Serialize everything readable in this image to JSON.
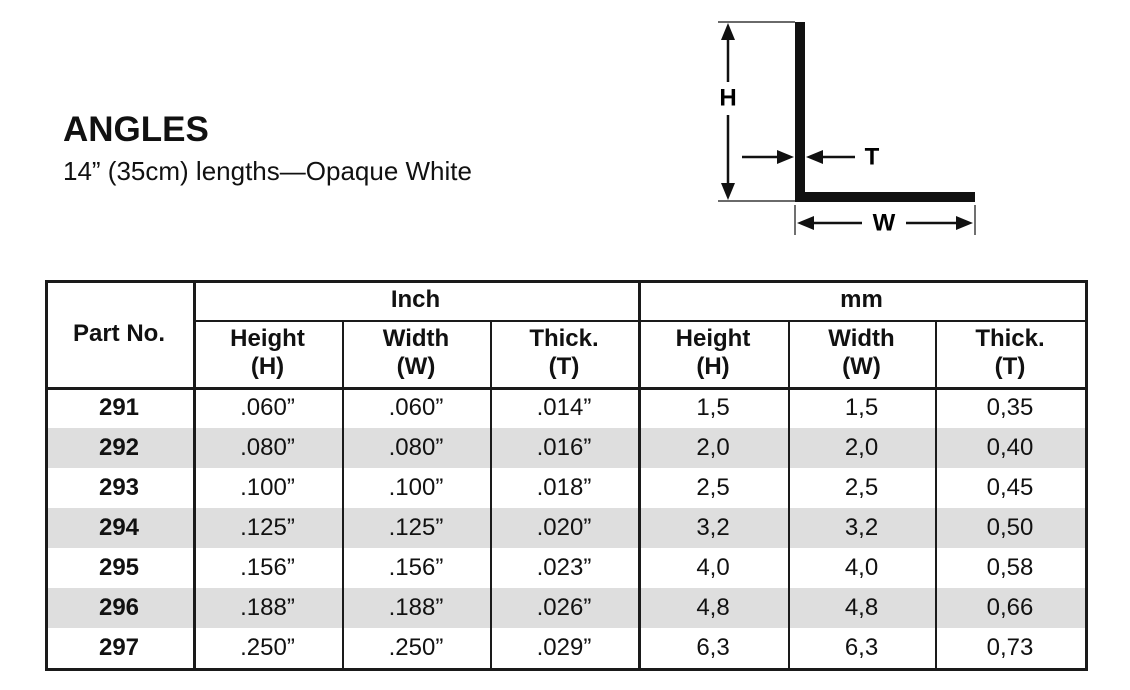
{
  "header": {
    "title": "ANGLES",
    "subtitle": "14” (35cm) lengths—Opaque White"
  },
  "diagram": {
    "height_label": "H",
    "thickness_label": "T",
    "width_label": "W"
  },
  "table": {
    "part_header": "Part No.",
    "group_headers": [
      "Inch",
      "mm"
    ],
    "columns": [
      {
        "name": "Height",
        "symbol": "(H)"
      },
      {
        "name": "Width",
        "symbol": "(W)"
      },
      {
        "name": "Thick.",
        "symbol": "(T)"
      },
      {
        "name": "Height",
        "symbol": "(H)"
      },
      {
        "name": "Width",
        "symbol": "(W)"
      },
      {
        "name": "Thick.",
        "symbol": "(T)"
      }
    ],
    "rows": [
      [
        "291",
        ".060”",
        ".060”",
        ".014”",
        "1,5",
        "1,5",
        "0,35"
      ],
      [
        "292",
        ".080”",
        ".080”",
        ".016”",
        "2,0",
        "2,0",
        "0,40"
      ],
      [
        "293",
        ".100”",
        ".100”",
        ".018”",
        "2,5",
        "2,5",
        "0,45"
      ],
      [
        "294",
        ".125”",
        ".125”",
        ".020”",
        "3,2",
        "3,2",
        "0,50"
      ],
      [
        "295",
        ".156”",
        ".156”",
        ".023”",
        "4,0",
        "4,0",
        "0,58"
      ],
      [
        "296",
        ".188”",
        ".188”",
        ".026”",
        "4,8",
        "4,8",
        "0,66"
      ],
      [
        "297",
        ".250”",
        ".250”",
        ".029”",
        "6,3",
        "6,3",
        "0,73"
      ]
    ]
  }
}
